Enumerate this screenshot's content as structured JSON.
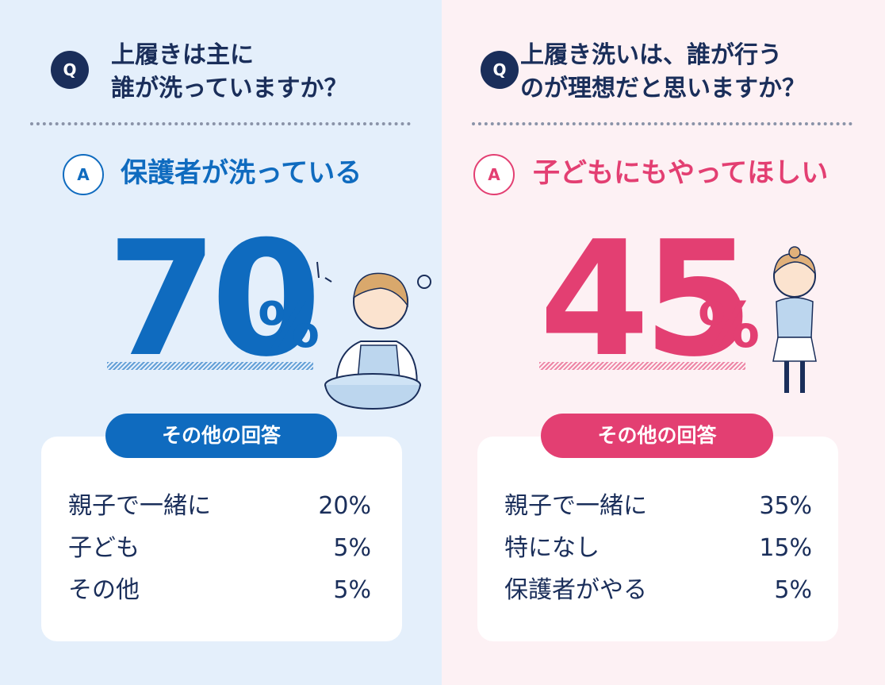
{
  "panels": [
    {
      "q_badge": "Q",
      "question_lines": [
        "上履きは主に",
        "誰が洗っていますか？"
      ],
      "a_badge": "A",
      "answer": "保護者が洗っている",
      "big_number": "70",
      "percent_sign": "%",
      "others_title": "その他の回答",
      "others": [
        {
          "label": "親子で一緒に",
          "value": "20%"
        },
        {
          "label": "子ども",
          "value": "5%"
        },
        {
          "label": "その他",
          "value": "5%"
        }
      ]
    },
    {
      "q_badge": "Q",
      "question_lines": [
        "上履き洗いは、誰が行う",
        "のが理想だと思いますか？"
      ],
      "a_badge": "A",
      "answer": "子どもにもやってほしい",
      "big_number": "45",
      "percent_sign": "%",
      "others_title": "その他の回答",
      "others": [
        {
          "label": "親子で一緒に",
          "value": "35%"
        },
        {
          "label": "特になし",
          "value": "15%"
        },
        {
          "label": "保護者がやる",
          "value": "5%"
        }
      ]
    }
  ]
}
